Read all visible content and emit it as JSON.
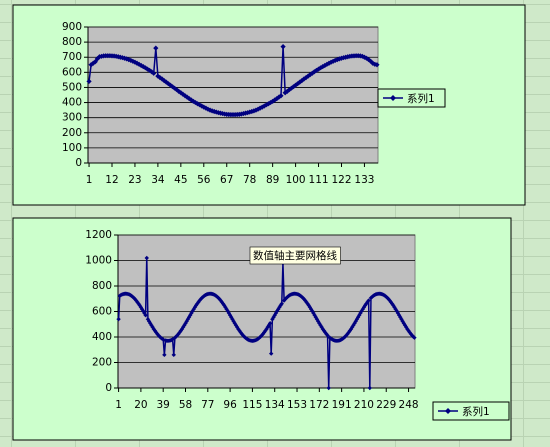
{
  "chart_data": [
    {
      "type": "line",
      "grid": true,
      "x": [
        1,
        2,
        3,
        4,
        5,
        6,
        7,
        8,
        9,
        10,
        11,
        12,
        13,
        14,
        15,
        16,
        17,
        18,
        19,
        20,
        21,
        22,
        23,
        24,
        25,
        26,
        27,
        28,
        29,
        30,
        31,
        32,
        33,
        34,
        35,
        36,
        37,
        38,
        39,
        40,
        41,
        42,
        43,
        44,
        45,
        46,
        47,
        48,
        49,
        50,
        51,
        52,
        53,
        54,
        55,
        56,
        57,
        58,
        59,
        60,
        61,
        62,
        63,
        64,
        65,
        66,
        67,
        68,
        69,
        70,
        71,
        72,
        73,
        74,
        75,
        76,
        77,
        78,
        79,
        80,
        81,
        82,
        83,
        84,
        85,
        86,
        87,
        88,
        89,
        90,
        91,
        92,
        93,
        94,
        95,
        96,
        97,
        98,
        99,
        100,
        101,
        102,
        103,
        104,
        105,
        106,
        107,
        108,
        109,
        110,
        111,
        112,
        113,
        114,
        115,
        116,
        117,
        118,
        119,
        120,
        121,
        122,
        123,
        124,
        125,
        126,
        127,
        128,
        129,
        130,
        131,
        132,
        133,
        134,
        135,
        136,
        137,
        138,
        139
      ],
      "series": [
        {
          "name": "系列1",
          "color": "#000080",
          "values": [
            540,
            650,
            660,
            670,
            690,
            703,
            706,
            709,
            710,
            710,
            710,
            709,
            708,
            706,
            703,
            700,
            697,
            693,
            689,
            684,
            679,
            673,
            667,
            660,
            653,
            645,
            638,
            630,
            621,
            613,
            604,
            594,
            760,
            575,
            565,
            556,
            545,
            535,
            525,
            515,
            505,
            495,
            485,
            474,
            465,
            455,
            445,
            436,
            426,
            417,
            408,
            400,
            392,
            385,
            377,
            370,
            363,
            356,
            350,
            345,
            341,
            337,
            333,
            330,
            327,
            324,
            322,
            321,
            320,
            320,
            320,
            321,
            322,
            324,
            327,
            330,
            333,
            337,
            341,
            345,
            350,
            356,
            363,
            370,
            377,
            385,
            392,
            400,
            408,
            417,
            426,
            436,
            445,
            770,
            465,
            474,
            485,
            495,
            505,
            515,
            525,
            535,
            545,
            556,
            565,
            575,
            585,
            594,
            604,
            613,
            621,
            630,
            638,
            645,
            653,
            660,
            667,
            673,
            679,
            684,
            689,
            693,
            697,
            700,
            703,
            706,
            708,
            709,
            710,
            710,
            709,
            706,
            700,
            693,
            684,
            673,
            660,
            653,
            650
          ]
        }
      ],
      "xlim": [
        0.5,
        139.5
      ],
      "xticks": [
        1,
        12,
        23,
        34,
        45,
        56,
        67,
        78,
        89,
        100,
        111,
        122,
        133
      ],
      "ylim": [
        0,
        900
      ],
      "yticks": [
        0,
        100,
        200,
        300,
        400,
        500,
        600,
        700,
        800,
        900
      ]
    },
    {
      "type": "line",
      "grid": true,
      "annotation": "数值轴主要网格线",
      "x": [
        1,
        2,
        3,
        4,
        5,
        6,
        7,
        8,
        9,
        10,
        11,
        12,
        13,
        14,
        15,
        16,
        17,
        18,
        19,
        20,
        21,
        22,
        23,
        24,
        25,
        26,
        27,
        28,
        29,
        30,
        31,
        32,
        33,
        34,
        35,
        36,
        37,
        38,
        39,
        40,
        41,
        42,
        43,
        44,
        45,
        46,
        47,
        48,
        49,
        50,
        51,
        52,
        53,
        54,
        55,
        56,
        57,
        58,
        59,
        60,
        61,
        62,
        63,
        64,
        65,
        66,
        67,
        68,
        69,
        70,
        71,
        72,
        73,
        74,
        75,
        76,
        77,
        78,
        79,
        80,
        81,
        82,
        83,
        84,
        85,
        86,
        87,
        88,
        89,
        90,
        91,
        92,
        93,
        94,
        95,
        96,
        97,
        98,
        99,
        100,
        101,
        102,
        103,
        104,
        105,
        106,
        107,
        108,
        109,
        110,
        111,
        112,
        113,
        114,
        115,
        116,
        117,
        118,
        119,
        120,
        121,
        122,
        123,
        124,
        125,
        126,
        127,
        128,
        129,
        130,
        131,
        132,
        133,
        134,
        135,
        136,
        137,
        138,
        139,
        140,
        141,
        142,
        143,
        144,
        145,
        146,
        147,
        148,
        149,
        150,
        151,
        152,
        153,
        154,
        155,
        156,
        157,
        158,
        159,
        160,
        161,
        162,
        163,
        164,
        165,
        166,
        167,
        168,
        169,
        170,
        171,
        172,
        173,
        174,
        175,
        176,
        177,
        178,
        179,
        180,
        181,
        182,
        183,
        184,
        185,
        186,
        187,
        188,
        189,
        190,
        191,
        192,
        193,
        194,
        195,
        196,
        197,
        198,
        199,
        200,
        201,
        202,
        203,
        204,
        205,
        206,
        207,
        208,
        209,
        210,
        211,
        212,
        213,
        214,
        215,
        216,
        217,
        218,
        219,
        220,
        221,
        222,
        223,
        224,
        225,
        226,
        227,
        228,
        229,
        230,
        231,
        232,
        233,
        234,
        235,
        236,
        237,
        238,
        239,
        240,
        241,
        242,
        243,
        244,
        245,
        246,
        247,
        248,
        249,
        250,
        251,
        252,
        253
      ],
      "series": [
        {
          "name": "系列1",
          "color": "#000080",
          "values": [
            540,
            723,
            729,
            734,
            737,
            739,
            740,
            739,
            737,
            734,
            729,
            723,
            715,
            707,
            697,
            686,
            674,
            661,
            648,
            633,
            618,
            603,
            587,
            571,
            1020,
            539,
            523,
            507,
            492,
            477,
            462,
            449,
            436,
            424,
            413,
            403,
            395,
            387,
            381,
            260,
            373,
            371,
            370,
            371,
            373,
            376,
            381,
            260,
            395,
            403,
            413,
            424,
            436,
            449,
            462,
            477,
            492,
            507,
            523,
            539,
            555,
            571,
            587,
            603,
            618,
            633,
            648,
            661,
            674,
            686,
            697,
            707,
            715,
            723,
            729,
            734,
            737,
            739,
            740,
            739,
            737,
            734,
            729,
            723,
            715,
            707,
            697,
            686,
            674,
            661,
            648,
            633,
            618,
            603,
            587,
            571,
            555,
            539,
            523,
            507,
            492,
            477,
            462,
            449,
            436,
            424,
            413,
            403,
            395,
            387,
            381,
            376,
            373,
            371,
            370,
            371,
            373,
            376,
            381,
            387,
            395,
            403,
            413,
            424,
            436,
            449,
            462,
            477,
            492,
            507,
            270,
            539,
            555,
            571,
            587,
            603,
            618,
            633,
            648,
            661,
            980,
            686,
            697,
            707,
            715,
            723,
            729,
            734,
            737,
            739,
            740,
            739,
            737,
            734,
            729,
            723,
            715,
            707,
            697,
            686,
            674,
            661,
            648,
            633,
            618,
            603,
            587,
            571,
            555,
            539,
            523,
            507,
            492,
            477,
            462,
            449,
            436,
            424,
            413,
            0,
            395,
            387,
            381,
            376,
            373,
            371,
            370,
            371,
            373,
            376,
            381,
            387,
            395,
            403,
            413,
            424,
            436,
            449,
            462,
            477,
            492,
            507,
            523,
            539,
            555,
            571,
            587,
            603,
            618,
            633,
            648,
            661,
            674,
            686,
            0,
            707,
            715,
            723,
            729,
            734,
            737,
            739,
            740,
            739,
            737,
            734,
            729,
            723,
            715,
            707,
            697,
            686,
            674,
            661,
            648,
            633,
            618,
            603,
            587,
            571,
            555,
            539,
            523,
            507,
            492,
            477,
            462,
            449,
            436,
            424,
            413,
            403,
            395
          ]
        }
      ],
      "xlim": [
        0.5,
        253.5
      ],
      "xticks": [
        1,
        20,
        39,
        58,
        77,
        96,
        115,
        134,
        153,
        172,
        191,
        210,
        229,
        248
      ],
      "ylim": [
        0,
        1200
      ],
      "yticks": [
        0,
        200,
        400,
        600,
        800,
        1000,
        1200
      ]
    }
  ]
}
